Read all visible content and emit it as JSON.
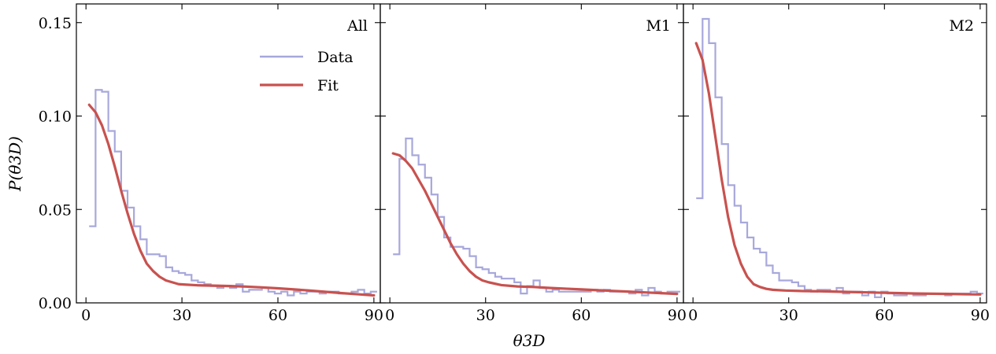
{
  "colors": {
    "data": "#a8a8dc",
    "fit": "#c8524f"
  },
  "axes": {
    "ylabel": "P(θ3D)",
    "xlabel": "θ3D",
    "x_ticks": [
      0,
      30,
      60,
      90
    ],
    "y_ticks": [
      0.0,
      0.05,
      0.1,
      0.15
    ],
    "y_tick_labels": [
      "0.00",
      "0.05",
      "0.10",
      "0.15"
    ],
    "xlim": [
      -3,
      92
    ],
    "ylim": [
      0,
      0.16
    ]
  },
  "legend": {
    "items": [
      "Data",
      "Fit"
    ]
  },
  "chart_data": [
    {
      "type": "line",
      "label": "All",
      "bin_width": 2,
      "hist_start": 1,
      "hist_series": [
        {
          "name": "Data",
          "values": [
            0.041,
            0.114,
            0.113,
            0.092,
            0.081,
            0.06,
            0.051,
            0.041,
            0.034,
            0.026,
            0.026,
            0.025,
            0.019,
            0.017,
            0.016,
            0.015,
            0.012,
            0.011,
            0.01,
            0.009,
            0.008,
            0.009,
            0.008,
            0.01,
            0.006,
            0.007,
            0.007,
            0.008,
            0.006,
            0.005,
            0.006,
            0.004,
            0.006,
            0.005,
            0.006,
            0.006,
            0.005,
            0.006,
            0.006,
            0.005,
            0.005,
            0.006,
            0.007,
            0.005,
            0.006
          ]
        }
      ],
      "fit_series": [
        {
          "name": "Fit",
          "x": [
            1,
            3,
            5,
            7,
            9,
            11,
            13,
            15,
            17,
            19,
            21,
            23,
            25,
            27,
            29,
            31,
            35,
            40,
            45,
            50,
            55,
            60,
            65,
            70,
            75,
            80,
            85,
            90
          ],
          "y": [
            0.106,
            0.102,
            0.095,
            0.085,
            0.073,
            0.06,
            0.048,
            0.037,
            0.028,
            0.021,
            0.017,
            0.014,
            0.012,
            0.011,
            0.01,
            0.0098,
            0.0094,
            0.0092,
            0.009,
            0.0087,
            0.0083,
            0.0078,
            0.0072,
            0.0066,
            0.0059,
            0.0052,
            0.0046,
            0.004
          ]
        }
      ]
    },
    {
      "type": "line",
      "label": "M1",
      "bin_width": 2,
      "hist_start": 1,
      "hist_series": [
        {
          "name": "Data",
          "values": [
            0.026,
            0.077,
            0.088,
            0.079,
            0.074,
            0.067,
            0.058,
            0.046,
            0.035,
            0.03,
            0.03,
            0.029,
            0.025,
            0.019,
            0.018,
            0.016,
            0.014,
            0.013,
            0.013,
            0.011,
            0.005,
            0.009,
            0.012,
            0.008,
            0.006,
            0.007,
            0.006,
            0.006,
            0.006,
            0.006,
            0.006,
            0.007,
            0.006,
            0.007,
            0.006,
            0.006,
            0.006,
            0.005,
            0.007,
            0.004,
            0.008,
            0.006,
            0.005,
            0.006,
            0.006
          ]
        }
      ],
      "fit_series": [
        {
          "name": "Fit",
          "x": [
            1,
            3,
            5,
            7,
            9,
            11,
            13,
            15,
            17,
            19,
            21,
            23,
            25,
            27,
            29,
            31,
            35,
            40,
            45,
            50,
            55,
            60,
            65,
            70,
            75,
            80,
            85,
            90
          ],
          "y": [
            0.08,
            0.079,
            0.076,
            0.072,
            0.066,
            0.06,
            0.053,
            0.046,
            0.039,
            0.032,
            0.026,
            0.021,
            0.017,
            0.014,
            0.012,
            0.011,
            0.0095,
            0.0088,
            0.0085,
            0.008,
            0.0076,
            0.0072,
            0.0068,
            0.0064,
            0.006,
            0.0056,
            0.0052,
            0.0048
          ]
        }
      ]
    },
    {
      "type": "line",
      "label": "M2",
      "bin_width": 2,
      "hist_start": 1,
      "hist_series": [
        {
          "name": "Data",
          "values": [
            0.056,
            0.152,
            0.139,
            0.11,
            0.085,
            0.063,
            0.052,
            0.043,
            0.035,
            0.029,
            0.027,
            0.02,
            0.016,
            0.012,
            0.012,
            0.011,
            0.009,
            0.007,
            0.006,
            0.007,
            0.007,
            0.006,
            0.008,
            0.005,
            0.006,
            0.006,
            0.004,
            0.006,
            0.003,
            0.006,
            0.005,
            0.004,
            0.004,
            0.005,
            0.004,
            0.004,
            0.005,
            0.005,
            0.005,
            0.004,
            0.005,
            0.005,
            0.005,
            0.006,
            0.005
          ]
        }
      ],
      "fit_series": [
        {
          "name": "Fit",
          "x": [
            1,
            3,
            5,
            7,
            9,
            11,
            13,
            15,
            17,
            19,
            21,
            23,
            25,
            27,
            29,
            31,
            35,
            40,
            45,
            50,
            55,
            60,
            65,
            70,
            75,
            80,
            85,
            90
          ],
          "y": [
            0.139,
            0.13,
            0.112,
            0.089,
            0.066,
            0.046,
            0.031,
            0.021,
            0.014,
            0.01,
            0.0085,
            0.0075,
            0.007,
            0.0068,
            0.0066,
            0.0065,
            0.0063,
            0.0062,
            0.006,
            0.0058,
            0.0056,
            0.0054,
            0.0052,
            0.005,
            0.0049,
            0.0048,
            0.0046,
            0.0045
          ]
        }
      ]
    }
  ]
}
